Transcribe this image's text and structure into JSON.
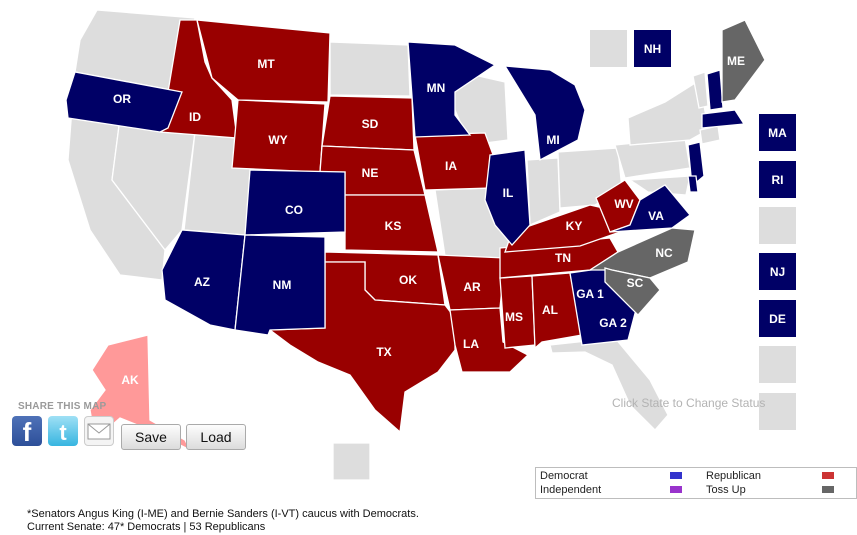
{
  "share": {
    "title": "SHARE THIS MAP"
  },
  "buttons": {
    "save": "Save",
    "load": "Load"
  },
  "hint": "Click State to Change Status",
  "legend": {
    "items": [
      {
        "label": "Democrat",
        "color": "#3333cc"
      },
      {
        "label": "Republican",
        "color": "#cc3333"
      },
      {
        "label": "Independent",
        "color": "#9933cc"
      },
      {
        "label": "Toss Up",
        "color": "#666666"
      }
    ]
  },
  "colors": {
    "dem": "#000066",
    "rep": "#990000",
    "toss": "#666666",
    "none": "#dddddd",
    "ak": "#ff9999"
  },
  "states": [
    {
      "label": "OR"
    },
    {
      "label": "ID"
    },
    {
      "label": "MT"
    },
    {
      "label": "WY"
    },
    {
      "label": "CO"
    },
    {
      "label": "AZ"
    },
    {
      "label": "NM"
    },
    {
      "label": "TX"
    },
    {
      "label": "OK"
    },
    {
      "label": "KS"
    },
    {
      "label": "NE"
    },
    {
      "label": "SD"
    },
    {
      "label": "MN"
    },
    {
      "label": "IA"
    },
    {
      "label": "IL"
    },
    {
      "label": "MI"
    },
    {
      "label": "AR"
    },
    {
      "label": "LA"
    },
    {
      "label": "MS"
    },
    {
      "label": "AL"
    },
    {
      "label": "TN"
    },
    {
      "label": "KY"
    },
    {
      "label": "WV"
    },
    {
      "label": "VA"
    },
    {
      "label": "NC"
    },
    {
      "label": "SC"
    },
    {
      "label": "GA 1"
    },
    {
      "label": "GA 2"
    },
    {
      "label": "ME"
    },
    {
      "label": "AK"
    }
  ],
  "boxes": [
    {
      "label": ""
    },
    {
      "label": "NH"
    },
    {
      "label": "MA"
    },
    {
      "label": "RI"
    },
    {
      "label": ""
    },
    {
      "label": "NJ"
    },
    {
      "label": "DE"
    },
    {
      "label": ""
    },
    {
      "label": ""
    },
    {
      "label": ""
    }
  ],
  "footnote": {
    "line1": "*Senators Angus King (I-ME) and Bernie Sanders (I-VT) caucus with Democrats.",
    "line2": "Current Senate: 47* Democrats | 53 Republicans"
  }
}
